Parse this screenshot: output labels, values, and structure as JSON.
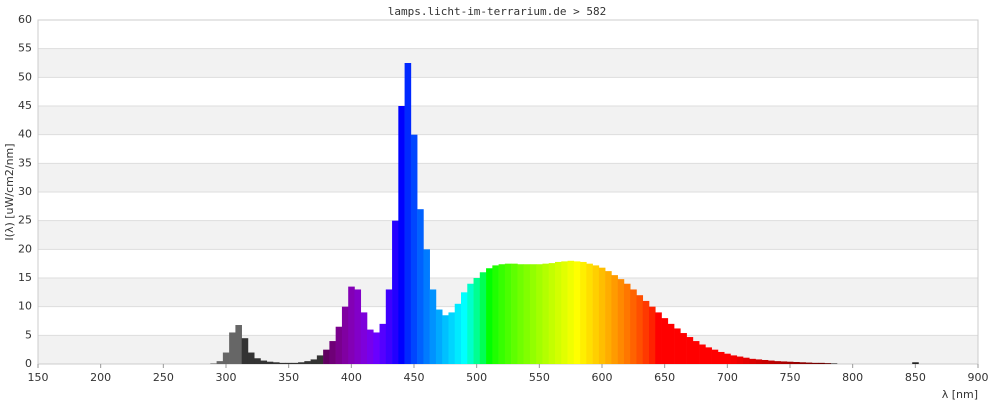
{
  "chart_data": {
    "type": "spectrum",
    "title": "lamps.licht-im-terrarium.de > 582",
    "x_label": "λ [nm]",
    "y_label": "I(λ) [uW/cm2/nm]",
    "x": [
      285,
      290,
      295,
      300,
      305,
      310,
      315,
      320,
      325,
      330,
      335,
      340,
      345,
      350,
      355,
      360,
      365,
      370,
      375,
      380,
      385,
      390,
      395,
      400,
      405,
      410,
      415,
      420,
      425,
      430,
      435,
      440,
      445,
      450,
      455,
      460,
      465,
      470,
      475,
      480,
      485,
      490,
      495,
      500,
      505,
      510,
      515,
      520,
      525,
      530,
      535,
      540,
      545,
      550,
      555,
      560,
      565,
      570,
      575,
      580,
      585,
      590,
      595,
      600,
      605,
      610,
      615,
      620,
      625,
      630,
      635,
      640,
      645,
      650,
      655,
      660,
      665,
      670,
      675,
      680,
      685,
      690,
      695,
      700,
      705,
      710,
      715,
      720,
      725,
      730,
      735,
      740,
      745,
      750,
      755,
      760,
      765,
      770,
      775,
      780,
      785,
      850
    ],
    "values": [
      0,
      0.1,
      0.5,
      2,
      5.5,
      6.8,
      4.5,
      2,
      1,
      0.6,
      0.4,
      0.3,
      0.2,
      0.2,
      0.2,
      0.3,
      0.5,
      0.8,
      1.5,
      2.5,
      4,
      6.5,
      10,
      13.5,
      13,
      9,
      6,
      5.5,
      7,
      13,
      25,
      45,
      52.5,
      40,
      27,
      20,
      13,
      9.5,
      8.5,
      9,
      10.5,
      12.5,
      14,
      15,
      16,
      16.7,
      17.2,
      17.4,
      17.5,
      17.5,
      17.4,
      17.4,
      17.4,
      17.4,
      17.5,
      17.6,
      17.8,
      17.9,
      18,
      17.9,
      17.8,
      17.5,
      17.2,
      16.8,
      16.2,
      15.5,
      14.8,
      14,
      13,
      12,
      11,
      10,
      9,
      8,
      7,
      6.2,
      5.4,
      4.7,
      4,
      3.4,
      2.9,
      2.5,
      2.1,
      1.8,
      1.5,
      1.3,
      1.1,
      0.9,
      0.8,
      0.7,
      0.6,
      0.5,
      0.45,
      0.4,
      0.35,
      0.3,
      0.25,
      0.2,
      0.2,
      0.15,
      0.1,
      0.3
    ],
    "xlim": [
      150,
      900
    ],
    "ylim": [
      0,
      60
    ],
    "xticks": [
      150,
      200,
      250,
      300,
      350,
      400,
      450,
      500,
      550,
      600,
      650,
      700,
      750,
      800,
      850,
      900
    ],
    "yticks": [
      0,
      5,
      10,
      15,
      20,
      25,
      30,
      35,
      40,
      45,
      50,
      55,
      60
    ],
    "grid": true
  }
}
